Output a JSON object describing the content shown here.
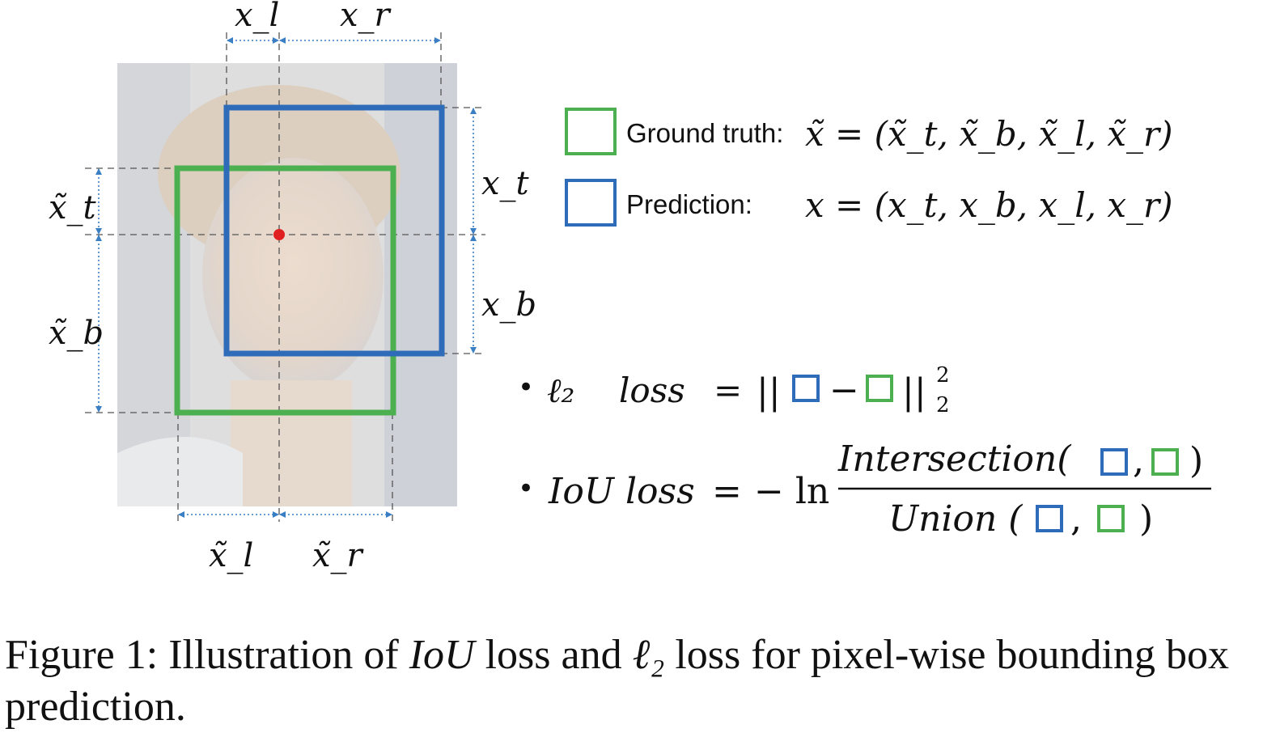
{
  "colors": {
    "ground_truth": "#4CAF50",
    "prediction": "#2E6BB8",
    "center_point": "#E02020",
    "dim_arrows": "#3A7FC4"
  },
  "dimension_labels": {
    "x_l": "x_l",
    "x_r": "x_r",
    "x_t": "x_t",
    "x_b": "x_b",
    "gt_x_t": "x̃_t",
    "gt_x_b": "x̃_b",
    "gt_x_l": "x̃_l",
    "gt_x_r": "x̃_r"
  },
  "legend": {
    "ground_truth_label": "Ground truth:",
    "ground_truth_formula": "x̃ = (x̃_t, x̃_b, x̃_l, x̃_r)",
    "prediction_label": "Prediction:",
    "prediction_formula": "x = (x_t, x_b, x_l, x_r)"
  },
  "formulas": {
    "bullet": "•",
    "l2": {
      "name": "ℓ₂",
      "word": "loss",
      "equals": "=",
      "bars_open": "||",
      "minus": "−",
      "bars_close": "||",
      "sup": "2",
      "sub": "2"
    },
    "iou": {
      "name": "IoU loss",
      "equals": "=",
      "neg_ln": "− ln",
      "numerator": "Intersection(",
      "denominator": "Union (",
      "comma": ",",
      "close": ")"
    }
  },
  "caption": {
    "prefix": "Figure 1: Illustration of ",
    "italic": "IoU",
    "mid": " loss and ",
    "l2": "ℓ₂",
    "suffix": " loss for pixel-wise bounding box prediction."
  }
}
